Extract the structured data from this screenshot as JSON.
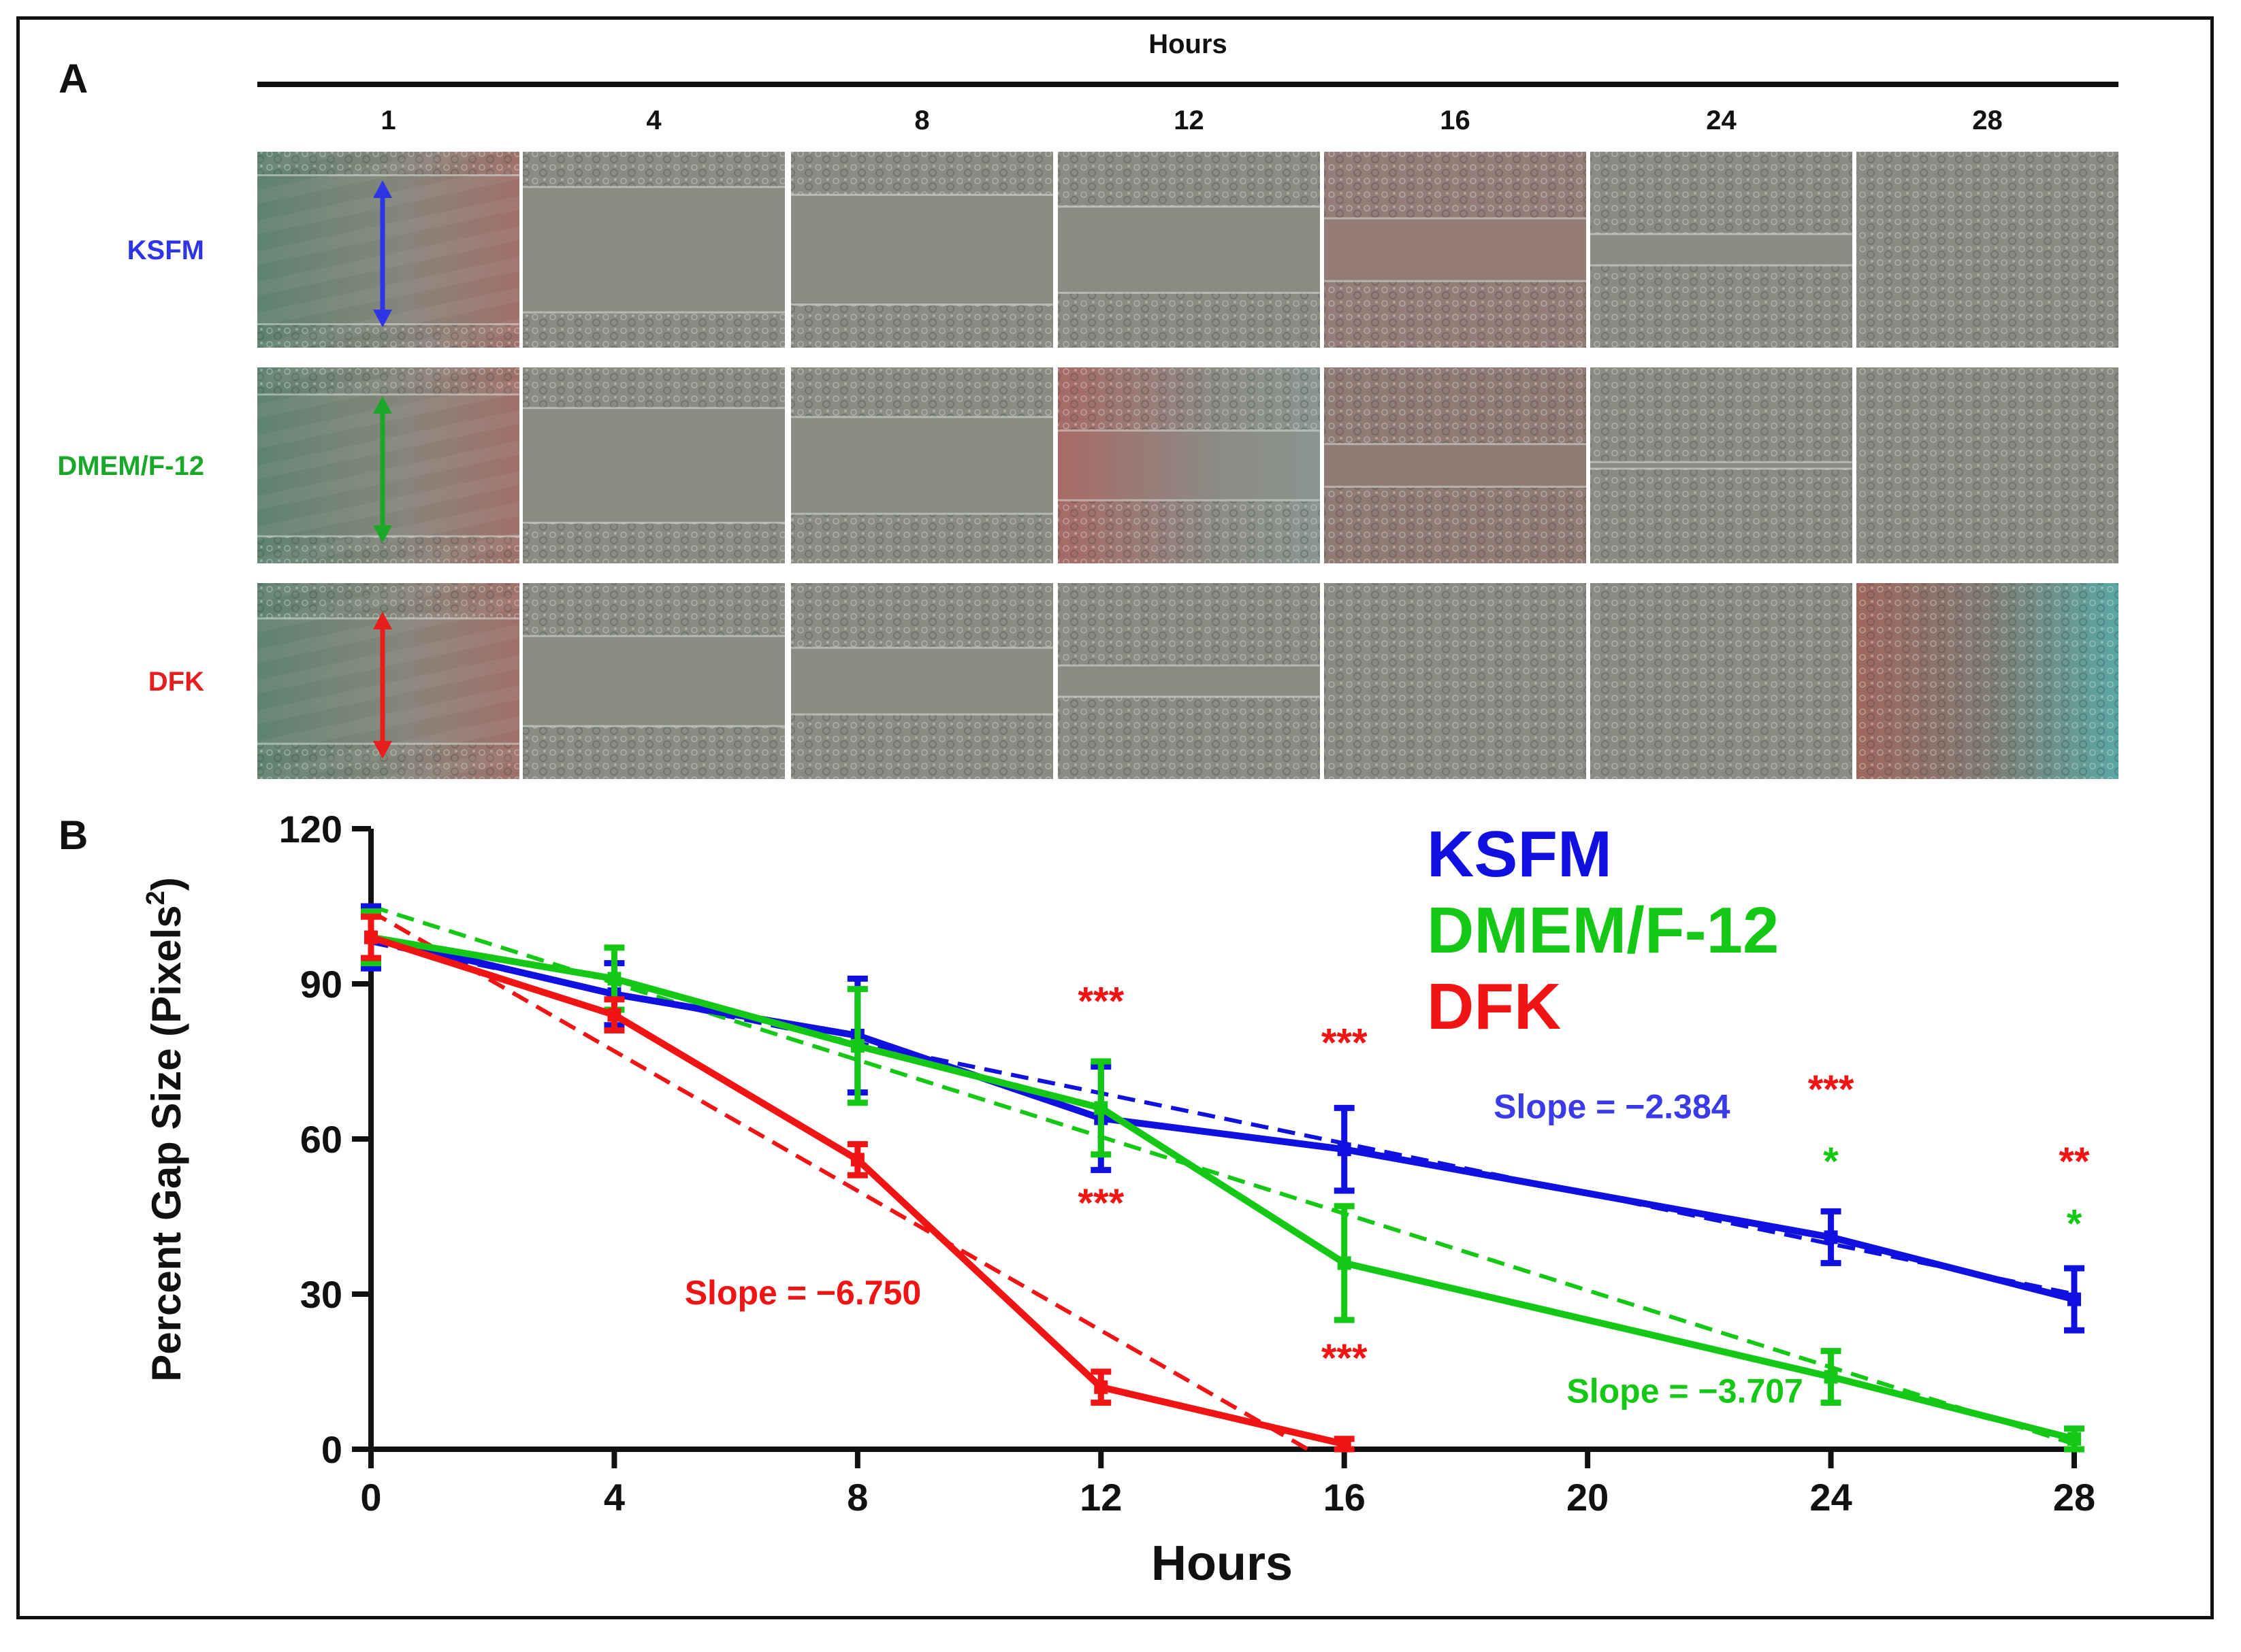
{
  "panel_a": {
    "label": "A",
    "header": "Hours",
    "columns": [
      "1",
      "4",
      "8",
      "12",
      "16",
      "24",
      "28"
    ],
    "rows": [
      {
        "label": "KSFM",
        "color": "#2e35e6"
      },
      {
        "label": "DMEM/F-12",
        "color": "#1aa82a"
      },
      {
        "label": "DFK",
        "color": "#e81e1e"
      }
    ]
  },
  "panel_b": {
    "label": "B"
  },
  "chart_data": {
    "type": "line",
    "xlabel": "Hours",
    "ylabel": "Percent Gap Size (Pixels",
    "ylabel_sup": "2",
    "ylabel_close": ")",
    "xlim": [
      0,
      28
    ],
    "ylim": [
      0,
      120
    ],
    "xticks": [
      0,
      4,
      8,
      12,
      16,
      20,
      24,
      28
    ],
    "yticks": [
      0,
      30,
      60,
      90,
      120
    ],
    "grid": false,
    "legend_position": "top-right",
    "legend": [
      {
        "label": "KSFM",
        "color": "#1010e0"
      },
      {
        "label": "DMEM/F-12",
        "color": "#16c816"
      },
      {
        "label": "DFK",
        "color": "#f01414"
      }
    ],
    "series": [
      {
        "name": "KSFM",
        "color": "#1010e0",
        "x": [
          0,
          4,
          8,
          12,
          16,
          24,
          28
        ],
        "y": [
          99,
          88,
          80,
          64,
          58,
          41,
          29
        ],
        "err": [
          6,
          6,
          11,
          10,
          8,
          5,
          6
        ],
        "fit": {
          "x": [
            0,
            28
          ],
          "y": [
            98,
            30
          ]
        }
      },
      {
        "name": "DMEM/F-12",
        "color": "#16c816",
        "x": [
          0,
          4,
          8,
          12,
          16,
          24,
          28
        ],
        "y": [
          99,
          91,
          78,
          66,
          36,
          14,
          2
        ],
        "err": [
          5,
          6,
          11,
          9,
          11,
          5,
          2
        ],
        "fit": {
          "x": [
            0,
            28
          ],
          "y": [
            105,
            1
          ]
        }
      },
      {
        "name": "DFK",
        "color": "#f01414",
        "x": [
          0,
          4,
          8,
          12,
          16
        ],
        "y": [
          99,
          84,
          56,
          12,
          1
        ],
        "err": [
          4,
          3,
          3,
          3,
          1
        ],
        "fit": {
          "x": [
            0,
            15.4
          ],
          "y": [
            104,
            0
          ]
        }
      }
    ],
    "annotations": [
      {
        "text": "Slope = −2.384",
        "x": 20.4,
        "y": 64,
        "color": "#3a3ae8"
      },
      {
        "text": "Slope = −6.750",
        "x": 7.1,
        "y": 28,
        "color": "#f01414"
      },
      {
        "text": "Slope = −3.707",
        "x": 21.6,
        "y": 9,
        "color": "#16c816"
      },
      {
        "text": "***",
        "x": 12,
        "y": 84,
        "color": "#f01414"
      },
      {
        "text": "***",
        "x": 12,
        "y": 45,
        "color": "#f01414"
      },
      {
        "text": "***",
        "x": 16,
        "y": 76,
        "color": "#f01414"
      },
      {
        "text": "***",
        "x": 16,
        "y": 15,
        "color": "#f01414"
      },
      {
        "text": "***",
        "x": 24,
        "y": 67,
        "color": "#f01414"
      },
      {
        "text": "*",
        "x": 24,
        "y": 53,
        "color": "#16c816"
      },
      {
        "text": "**",
        "x": 28,
        "y": 53,
        "color": "#f01414"
      },
      {
        "text": "*",
        "x": 28,
        "y": 41,
        "color": "#16c816"
      }
    ]
  }
}
